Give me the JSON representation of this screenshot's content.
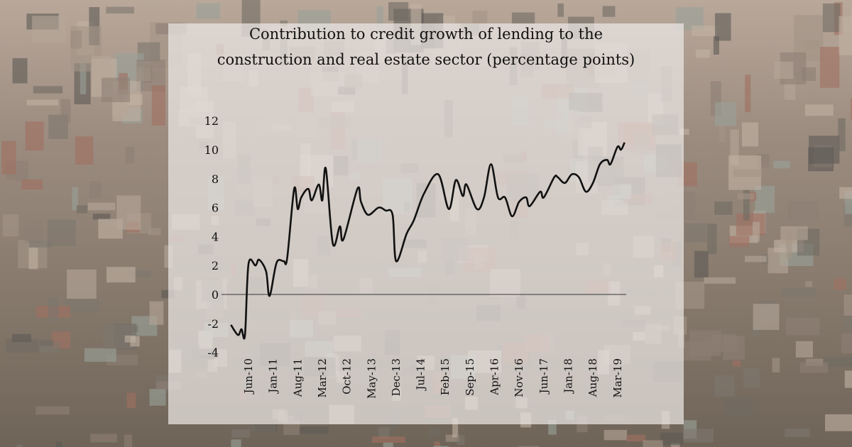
{
  "chart_data": {
    "type": "line",
    "title": "Contribution to credit growth of lending to the construction and real estate sector (percentage points)",
    "title_lines": [
      "Contribution to credit growth of lending to the",
      "construction and real estate sector (percentage points)"
    ],
    "xlabel": "",
    "ylabel": "",
    "ylim": [
      -4,
      12
    ],
    "yticks": [
      -4,
      -2,
      0,
      2,
      4,
      6,
      8,
      10,
      12
    ],
    "xlim": [
      "2010-01",
      "2019-05"
    ],
    "xtick_labels": [
      "Jun-10",
      "Jan-11",
      "Aug-11",
      "Mar-12",
      "Oct-12",
      "May-13",
      "Dec-13",
      "Jul-14",
      "Feb-15",
      "Sep-15",
      "Apr-16",
      "Nov-16",
      "Jun-17",
      "Jan-18",
      "Aug-18",
      "Mar-19"
    ],
    "xtick_dates": [
      "2010-06",
      "2011-01",
      "2011-08",
      "2012-03",
      "2012-10",
      "2013-05",
      "2013-12",
      "2014-07",
      "2015-02",
      "2015-09",
      "2016-04",
      "2016-11",
      "2017-06",
      "2018-01",
      "2018-08",
      "2019-03"
    ],
    "grid": false,
    "zero_line": true,
    "line_color": "#111111",
    "series": [
      {
        "x": [
          "2010-01",
          "2010-03",
          "2010-04",
          "2010-05",
          "2010-06",
          "2010-08",
          "2010-09",
          "2010-11",
          "2010-12",
          "2011-02",
          "2011-04",
          "2011-05",
          "2011-07",
          "2011-08",
          "2011-09",
          "2011-11",
          "2011-12",
          "2012-02",
          "2012-03",
          "2012-04",
          "2012-06",
          "2012-08",
          "2012-09",
          "2013-01",
          "2013-02",
          "2013-04",
          "2013-07",
          "2013-09",
          "2013-11",
          "2013-12",
          "2014-03",
          "2014-05",
          "2014-08",
          "2014-12",
          "2015-03",
          "2015-05",
          "2015-07",
          "2015-08",
          "2015-11",
          "2016-01",
          "2016-03",
          "2016-05",
          "2016-07",
          "2016-09",
          "2016-11",
          "2017-01",
          "2017-02",
          "2017-05",
          "2017-06",
          "2017-09",
          "2017-10",
          "2017-12",
          "2018-02",
          "2018-04",
          "2018-06",
          "2018-08",
          "2018-10",
          "2018-12",
          "2019-01",
          "2019-03",
          "2019-04",
          "2019-05"
        ],
        "y": [
          -2.1,
          -2.8,
          -2.4,
          -2.8,
          2.1,
          2.0,
          2.4,
          1.6,
          -0.1,
          2.2,
          2.3,
          2.5,
          7.3,
          5.9,
          6.7,
          7.3,
          6.5,
          7.6,
          6.5,
          8.7,
          3.5,
          4.7,
          3.8,
          7.3,
          6.4,
          5.5,
          6.0,
          5.8,
          5.5,
          2.3,
          4.2,
          5.1,
          7.0,
          8.3,
          5.9,
          7.9,
          6.8,
          7.6,
          5.9,
          6.7,
          9.0,
          6.7,
          6.7,
          5.4,
          6.4,
          6.7,
          6.1,
          7.1,
          6.7,
          8.1,
          8.1,
          7.7,
          8.3,
          8.1,
          7.1,
          7.7,
          9.0,
          9.3,
          9.0,
          10.2,
          10.0,
          10.5
        ]
      }
    ]
  }
}
